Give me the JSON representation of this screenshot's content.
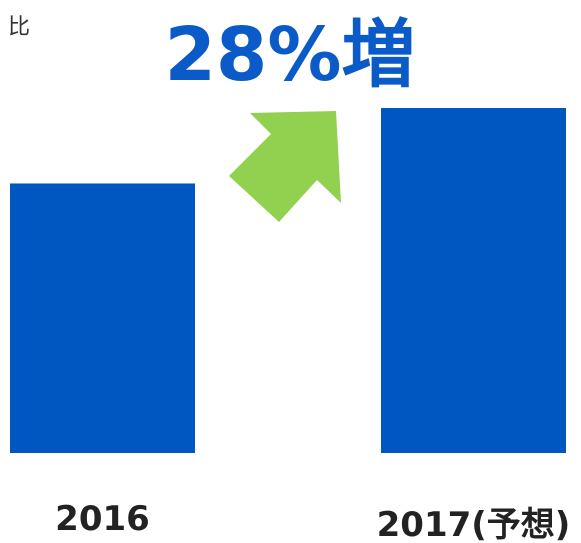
{
  "chart_data": {
    "type": "bar",
    "subtitle": "比",
    "annotation": "28%増",
    "categories": [
      "2016",
      "2017(予想)"
    ],
    "values": [
      100,
      128
    ],
    "color": "#0057c2"
  }
}
